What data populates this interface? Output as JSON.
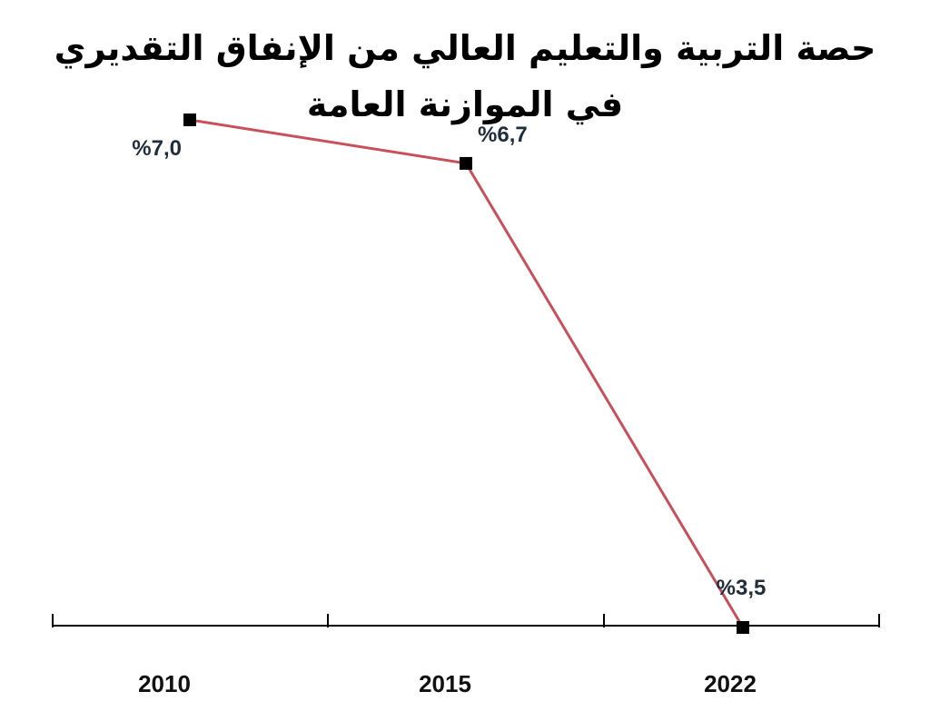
{
  "chart_data": {
    "type": "line",
    "title_line1": "حصة التربية والتعليم العالي من الإنفاق التقديري",
    "title_line2": "في الموازنة العامة",
    "x": [
      "2010",
      "2015",
      "2022"
    ],
    "series": [
      {
        "values": [
          7.0,
          6.7,
          3.5
        ],
        "value_labels": [
          "%7,0",
          "%6,7",
          "%3,5"
        ],
        "color": "#c8505a"
      }
    ],
    "ylim": [
      3.5,
      7.0
    ],
    "grid": false,
    "colors": {
      "line": "#c8505a",
      "marker": "#000000",
      "axis": "#000000",
      "label": "#1f2e3a"
    }
  }
}
